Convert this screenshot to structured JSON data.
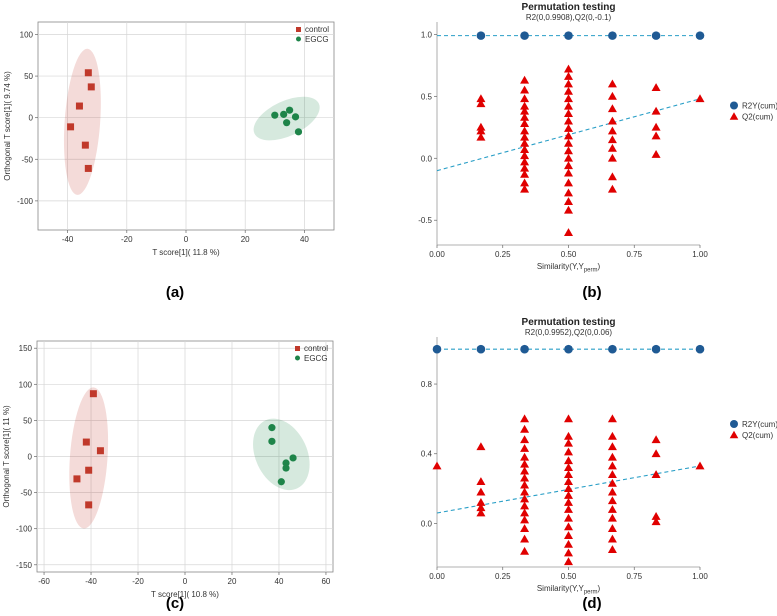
{
  "panel_labels": [
    "(a)",
    "(b)",
    "(c)",
    "(d)"
  ],
  "colors": {
    "control": "#c0392b",
    "egcg": "#1e8449",
    "r2y": "#1f5a94",
    "q2": "#e00000",
    "dash": "#2a9fc7"
  },
  "chart_data": [
    {
      "type": "scatter",
      "xlabel": "T score[1]( 11.8 %)",
      "ylabel": "Orthogonal T score[1]( 9.74 %)",
      "xlim": [
        -50,
        50
      ],
      "ylim": [
        -135,
        115
      ],
      "xticks": [
        -40,
        -20,
        0,
        20,
        40
      ],
      "yticks": [
        -100,
        -50,
        0,
        50,
        100
      ],
      "grid": true,
      "legend": "top-right",
      "series": [
        {
          "name": "control",
          "points": [
            [
              -33,
              54
            ],
            [
              -32,
              37
            ],
            [
              -36,
              14
            ],
            [
              -39,
              -11
            ],
            [
              -34,
              -33
            ],
            [
              -33,
              -61
            ]
          ],
          "ellipse": {
            "cx": -35,
            "cy": -5,
            "rx": 6,
            "ry": 88
          }
        },
        {
          "name": "EGCG",
          "points": [
            [
              30,
              3
            ],
            [
              33,
              4
            ],
            [
              35,
              9
            ],
            [
              37,
              1
            ],
            [
              34,
              -6
            ],
            [
              38,
              -17
            ]
          ],
          "ellipse": {
            "cx": 34,
            "cy": -1,
            "rx": 12,
            "ry": 21
          }
        }
      ]
    },
    {
      "type": "scatter",
      "title": "Permutation testing",
      "subtitle": "R2(0,0.9908),Q2(0,-0.1)",
      "xlabel": "Similarity(Y,Y",
      "xlabel_sub": "perm",
      "xlabel_end": ")",
      "xlim": [
        0,
        1
      ],
      "ylim": [
        -0.7,
        1.1
      ],
      "xticks": [
        "0.00",
        "0.25",
        "0.50",
        "0.75",
        "1.00"
      ],
      "yticks": [
        "-0.5",
        "0.0",
        "0.5",
        "1.0"
      ],
      "ytick_values": [
        -0.5,
        0.0,
        0.5,
        1.0
      ],
      "legend": "right",
      "series": [
        {
          "name": "R2Y(cum)",
          "points": [
            [
              0.167,
              0.99
            ],
            [
              0.333,
              0.99
            ],
            [
              0.5,
              0.99
            ],
            [
              0.667,
              0.99
            ],
            [
              0.833,
              0.99
            ],
            [
              1.0,
              0.99
            ]
          ],
          "regression": [
            [
              0,
              0.99
            ],
            [
              1,
              0.99
            ]
          ]
        },
        {
          "name": "Q2(cum)",
          "points": [
            [
              0.167,
              0.48
            ],
            [
              0.167,
              0.44
            ],
            [
              0.167,
              0.25
            ],
            [
              0.167,
              0.22
            ],
            [
              0.167,
              0.17
            ],
            [
              0.333,
              0.63
            ],
            [
              0.333,
              0.55
            ],
            [
              0.333,
              0.48
            ],
            [
              0.333,
              0.42
            ],
            [
              0.333,
              0.38
            ],
            [
              0.333,
              0.33
            ],
            [
              0.333,
              0.28
            ],
            [
              0.333,
              0.22
            ],
            [
              0.333,
              0.17
            ],
            [
              0.333,
              0.12
            ],
            [
              0.333,
              0.07
            ],
            [
              0.333,
              0.02
            ],
            [
              0.333,
              -0.03
            ],
            [
              0.333,
              -0.08
            ],
            [
              0.333,
              -0.13
            ],
            [
              0.333,
              -0.2
            ],
            [
              0.333,
              -0.25
            ],
            [
              0.5,
              0.72
            ],
            [
              0.5,
              0.66
            ],
            [
              0.5,
              0.6
            ],
            [
              0.5,
              0.54
            ],
            [
              0.5,
              0.48
            ],
            [
              0.5,
              0.42
            ],
            [
              0.5,
              0.36
            ],
            [
              0.5,
              0.3
            ],
            [
              0.5,
              0.24
            ],
            [
              0.5,
              0.18
            ],
            [
              0.5,
              0.12
            ],
            [
              0.5,
              0.06
            ],
            [
              0.5,
              0.0
            ],
            [
              0.5,
              -0.06
            ],
            [
              0.5,
              -0.12
            ],
            [
              0.5,
              -0.2
            ],
            [
              0.5,
              -0.28
            ],
            [
              0.5,
              -0.35
            ],
            [
              0.5,
              -0.42
            ],
            [
              0.5,
              -0.6
            ],
            [
              0.667,
              0.6
            ],
            [
              0.667,
              0.5
            ],
            [
              0.667,
              0.4
            ],
            [
              0.667,
              0.3
            ],
            [
              0.667,
              0.22
            ],
            [
              0.667,
              0.15
            ],
            [
              0.667,
              0.08
            ],
            [
              0.667,
              0.0
            ],
            [
              0.667,
              -0.15
            ],
            [
              0.667,
              -0.25
            ],
            [
              0.833,
              0.57
            ],
            [
              0.833,
              0.38
            ],
            [
              0.833,
              0.25
            ],
            [
              0.833,
              0.18
            ],
            [
              0.833,
              0.03
            ],
            [
              1.0,
              0.48
            ]
          ],
          "regression": [
            [
              0,
              -0.1
            ],
            [
              1,
              0.48
            ]
          ]
        }
      ]
    },
    {
      "type": "scatter",
      "xlabel": "T score[1]( 10.8 %)",
      "ylabel": "Orthogonal T score[1]( 11 %)",
      "xlim": [
        -63,
        63
      ],
      "ylim": [
        -160,
        160
      ],
      "xticks": [
        -60,
        -40,
        -20,
        0,
        20,
        40,
        60
      ],
      "yticks": [
        -150,
        -100,
        -50,
        0,
        50,
        100,
        150
      ],
      "grid": true,
      "legend": "top-right",
      "series": [
        {
          "name": "control",
          "points": [
            [
              -39,
              87
            ],
            [
              -42,
              20
            ],
            [
              -36,
              8
            ],
            [
              -41,
              -19
            ],
            [
              -46,
              -31
            ],
            [
              -41,
              -67
            ]
          ],
          "ellipse": {
            "cx": -41,
            "cy": -2,
            "rx": 8,
            "ry": 98
          }
        },
        {
          "name": "EGCG",
          "points": [
            [
              37,
              40
            ],
            [
              37,
              21
            ],
            [
              43,
              -9
            ],
            [
              46,
              -2
            ],
            [
              43,
              -16
            ],
            [
              41,
              -35
            ]
          ],
          "ellipse": {
            "cx": 41,
            "cy": 3,
            "rx": 11,
            "ry": 52
          }
        }
      ]
    },
    {
      "type": "scatter",
      "title": "Permutation testing",
      "subtitle": "R2(0,0.9952),Q2(0,0.06)",
      "xlabel": "Similarity(Y,Y",
      "xlabel_sub": "perm",
      "xlabel_end": ")",
      "xlim": [
        0,
        1
      ],
      "ylim": [
        -0.25,
        1.07
      ],
      "xticks": [
        "0.00",
        "0.25",
        "0.50",
        "0.75",
        "1.00"
      ],
      "yticks": [
        "0.0",
        "0.4",
        "0.8"
      ],
      "ytick_values": [
        0.0,
        0.4,
        0.8
      ],
      "legend": "right",
      "series": [
        {
          "name": "R2Y(cum)",
          "points": [
            [
              0,
              1.0
            ],
            [
              0.167,
              1.0
            ],
            [
              0.333,
              1.0
            ],
            [
              0.5,
              1.0
            ],
            [
              0.667,
              1.0
            ],
            [
              0.833,
              1.0
            ],
            [
              1.0,
              1.0
            ]
          ],
          "regression": [
            [
              0,
              1.0
            ],
            [
              1,
              1.0
            ]
          ]
        },
        {
          "name": "Q2(cum)",
          "points": [
            [
              0.0,
              0.33
            ],
            [
              0.167,
              0.44
            ],
            [
              0.167,
              0.24
            ],
            [
              0.167,
              0.18
            ],
            [
              0.167,
              0.12
            ],
            [
              0.167,
              0.09
            ],
            [
              0.167,
              0.06
            ],
            [
              0.333,
              0.6
            ],
            [
              0.333,
              0.54
            ],
            [
              0.333,
              0.48
            ],
            [
              0.333,
              0.43
            ],
            [
              0.333,
              0.38
            ],
            [
              0.333,
              0.34
            ],
            [
              0.333,
              0.3
            ],
            [
              0.333,
              0.26
            ],
            [
              0.333,
              0.22
            ],
            [
              0.333,
              0.18
            ],
            [
              0.333,
              0.14
            ],
            [
              0.333,
              0.1
            ],
            [
              0.333,
              0.06
            ],
            [
              0.333,
              0.02
            ],
            [
              0.333,
              -0.03
            ],
            [
              0.333,
              -0.09
            ],
            [
              0.333,
              -0.16
            ],
            [
              0.5,
              0.6
            ],
            [
              0.5,
              0.5
            ],
            [
              0.5,
              0.46
            ],
            [
              0.5,
              0.41
            ],
            [
              0.5,
              0.36
            ],
            [
              0.5,
              0.32
            ],
            [
              0.5,
              0.28
            ],
            [
              0.5,
              0.24
            ],
            [
              0.5,
              0.2
            ],
            [
              0.5,
              0.16
            ],
            [
              0.5,
              0.12
            ],
            [
              0.5,
              0.08
            ],
            [
              0.5,
              0.03
            ],
            [
              0.5,
              -0.02
            ],
            [
              0.5,
              -0.07
            ],
            [
              0.5,
              -0.12
            ],
            [
              0.5,
              -0.17
            ],
            [
              0.5,
              -0.22
            ],
            [
              0.667,
              0.6
            ],
            [
              0.667,
              0.5
            ],
            [
              0.667,
              0.44
            ],
            [
              0.667,
              0.38
            ],
            [
              0.667,
              0.33
            ],
            [
              0.667,
              0.28
            ],
            [
              0.667,
              0.23
            ],
            [
              0.667,
              0.18
            ],
            [
              0.667,
              0.13
            ],
            [
              0.667,
              0.08
            ],
            [
              0.667,
              0.03
            ],
            [
              0.667,
              -0.03
            ],
            [
              0.667,
              -0.09
            ],
            [
              0.667,
              -0.15
            ],
            [
              0.833,
              0.48
            ],
            [
              0.833,
              0.4
            ],
            [
              0.833,
              0.28
            ],
            [
              0.833,
              0.04
            ],
            [
              0.833,
              0.01
            ],
            [
              1.0,
              0.33
            ]
          ],
          "regression": [
            [
              0,
              0.06
            ],
            [
              1,
              0.33
            ]
          ]
        }
      ]
    }
  ]
}
